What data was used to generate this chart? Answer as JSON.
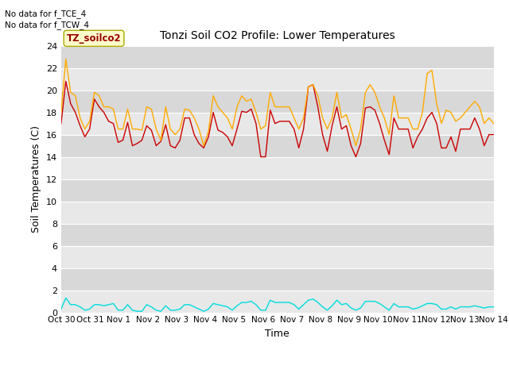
{
  "title": "Tonzi Soil CO2 Profile: Lower Temperatures",
  "xlabel": "Time",
  "ylabel": "Soil Temperatures (C)",
  "note1": "No data for f_TCE_4",
  "note2": "No data for f_TCW_4",
  "box_label": "TZ_soilco2",
  "ylim": [
    0,
    24
  ],
  "yticks": [
    0,
    2,
    4,
    6,
    8,
    10,
    12,
    14,
    16,
    18,
    20,
    22,
    24
  ],
  "xtick_labels": [
    "Oct 30",
    "Oct 31",
    "Nov 1",
    "Nov 2",
    "Nov 3",
    "Nov 4",
    "Nov 5",
    "Nov 6",
    "Nov 7",
    "Nov 8",
    "Nov 9",
    "Nov 10",
    "Nov 11",
    "Nov 12",
    "Nov 13",
    "Nov 14"
  ],
  "color_open": "#cc0000",
  "color_tree": "#ffaa00",
  "color_tree2": "#00dddd",
  "bg_dark": "#d8d8d8",
  "bg_light": "#e8e8e8",
  "open_data": [
    17.0,
    20.8,
    18.8,
    18.0,
    16.8,
    15.8,
    16.5,
    19.2,
    18.5,
    18.0,
    17.2,
    17.0,
    15.3,
    15.5,
    17.1,
    15.0,
    15.2,
    15.5,
    16.8,
    16.4,
    15.0,
    15.4,
    16.9,
    15.0,
    14.8,
    15.5,
    17.5,
    17.5,
    16.0,
    15.2,
    14.8,
    15.8,
    18.0,
    16.4,
    16.2,
    15.8,
    15.0,
    16.5,
    18.1,
    18.0,
    18.3,
    17.0,
    14.0,
    14.0,
    18.2,
    17.0,
    17.2,
    17.2,
    17.2,
    16.5,
    14.8,
    16.5,
    20.3,
    20.5,
    18.5,
    16.0,
    14.5,
    16.8,
    18.5,
    16.5,
    16.8,
    15.0,
    14.0,
    15.2,
    18.4,
    18.5,
    18.2,
    17.0,
    15.5,
    14.2,
    17.5,
    16.5,
    16.5,
    16.5,
    14.8,
    15.8,
    16.5,
    17.5,
    18.0,
    17.0,
    14.8,
    14.8,
    15.8,
    14.5,
    16.5,
    16.5,
    16.5,
    17.5,
    16.5,
    15.0,
    16.0,
    16.0
  ],
  "tree_data": [
    18.0,
    22.8,
    19.8,
    19.5,
    17.5,
    16.5,
    17.2,
    19.8,
    19.5,
    18.5,
    18.5,
    18.3,
    16.5,
    16.5,
    18.3,
    16.5,
    16.5,
    16.4,
    18.5,
    18.3,
    16.5,
    15.5,
    18.5,
    16.5,
    16.0,
    16.5,
    18.3,
    18.2,
    17.5,
    16.5,
    15.0,
    16.3,
    19.5,
    18.5,
    18.0,
    17.5,
    16.5,
    18.5,
    19.5,
    19.0,
    19.2,
    18.0,
    16.5,
    16.8,
    19.8,
    18.5,
    18.5,
    18.5,
    18.5,
    17.5,
    16.5,
    17.5,
    20.3,
    20.5,
    19.5,
    17.5,
    16.5,
    17.5,
    19.8,
    17.5,
    17.8,
    16.5,
    15.0,
    16.5,
    19.8,
    20.5,
    19.8,
    18.5,
    17.5,
    16.0,
    19.5,
    17.5,
    17.5,
    17.5,
    16.5,
    16.5,
    18.0,
    21.5,
    21.8,
    18.8,
    17.0,
    18.2,
    18.0,
    17.2,
    17.5,
    18.0,
    18.5,
    19.0,
    18.5,
    17.0,
    17.5,
    17.0
  ],
  "tree2_data": [
    0.3,
    1.3,
    0.7,
    0.7,
    0.5,
    0.2,
    0.3,
    0.7,
    0.7,
    0.6,
    0.7,
    0.8,
    0.2,
    0.2,
    0.7,
    0.2,
    0.1,
    0.1,
    0.7,
    0.5,
    0.2,
    0.1,
    0.6,
    0.2,
    0.2,
    0.3,
    0.7,
    0.7,
    0.5,
    0.3,
    0.1,
    0.3,
    0.8,
    0.7,
    0.6,
    0.5,
    0.2,
    0.6,
    0.9,
    0.9,
    1.0,
    0.7,
    0.2,
    0.2,
    1.1,
    0.9,
    0.9,
    0.9,
    0.9,
    0.7,
    0.3,
    0.7,
    1.1,
    1.2,
    0.9,
    0.5,
    0.2,
    0.6,
    1.1,
    0.7,
    0.8,
    0.4,
    0.2,
    0.4,
    1.0,
    1.0,
    1.0,
    0.8,
    0.5,
    0.2,
    0.8,
    0.5,
    0.5,
    0.5,
    0.3,
    0.4,
    0.6,
    0.8,
    0.8,
    0.7,
    0.3,
    0.3,
    0.5,
    0.3,
    0.5,
    0.5,
    0.5,
    0.6,
    0.5,
    0.4,
    0.5,
    0.5
  ]
}
